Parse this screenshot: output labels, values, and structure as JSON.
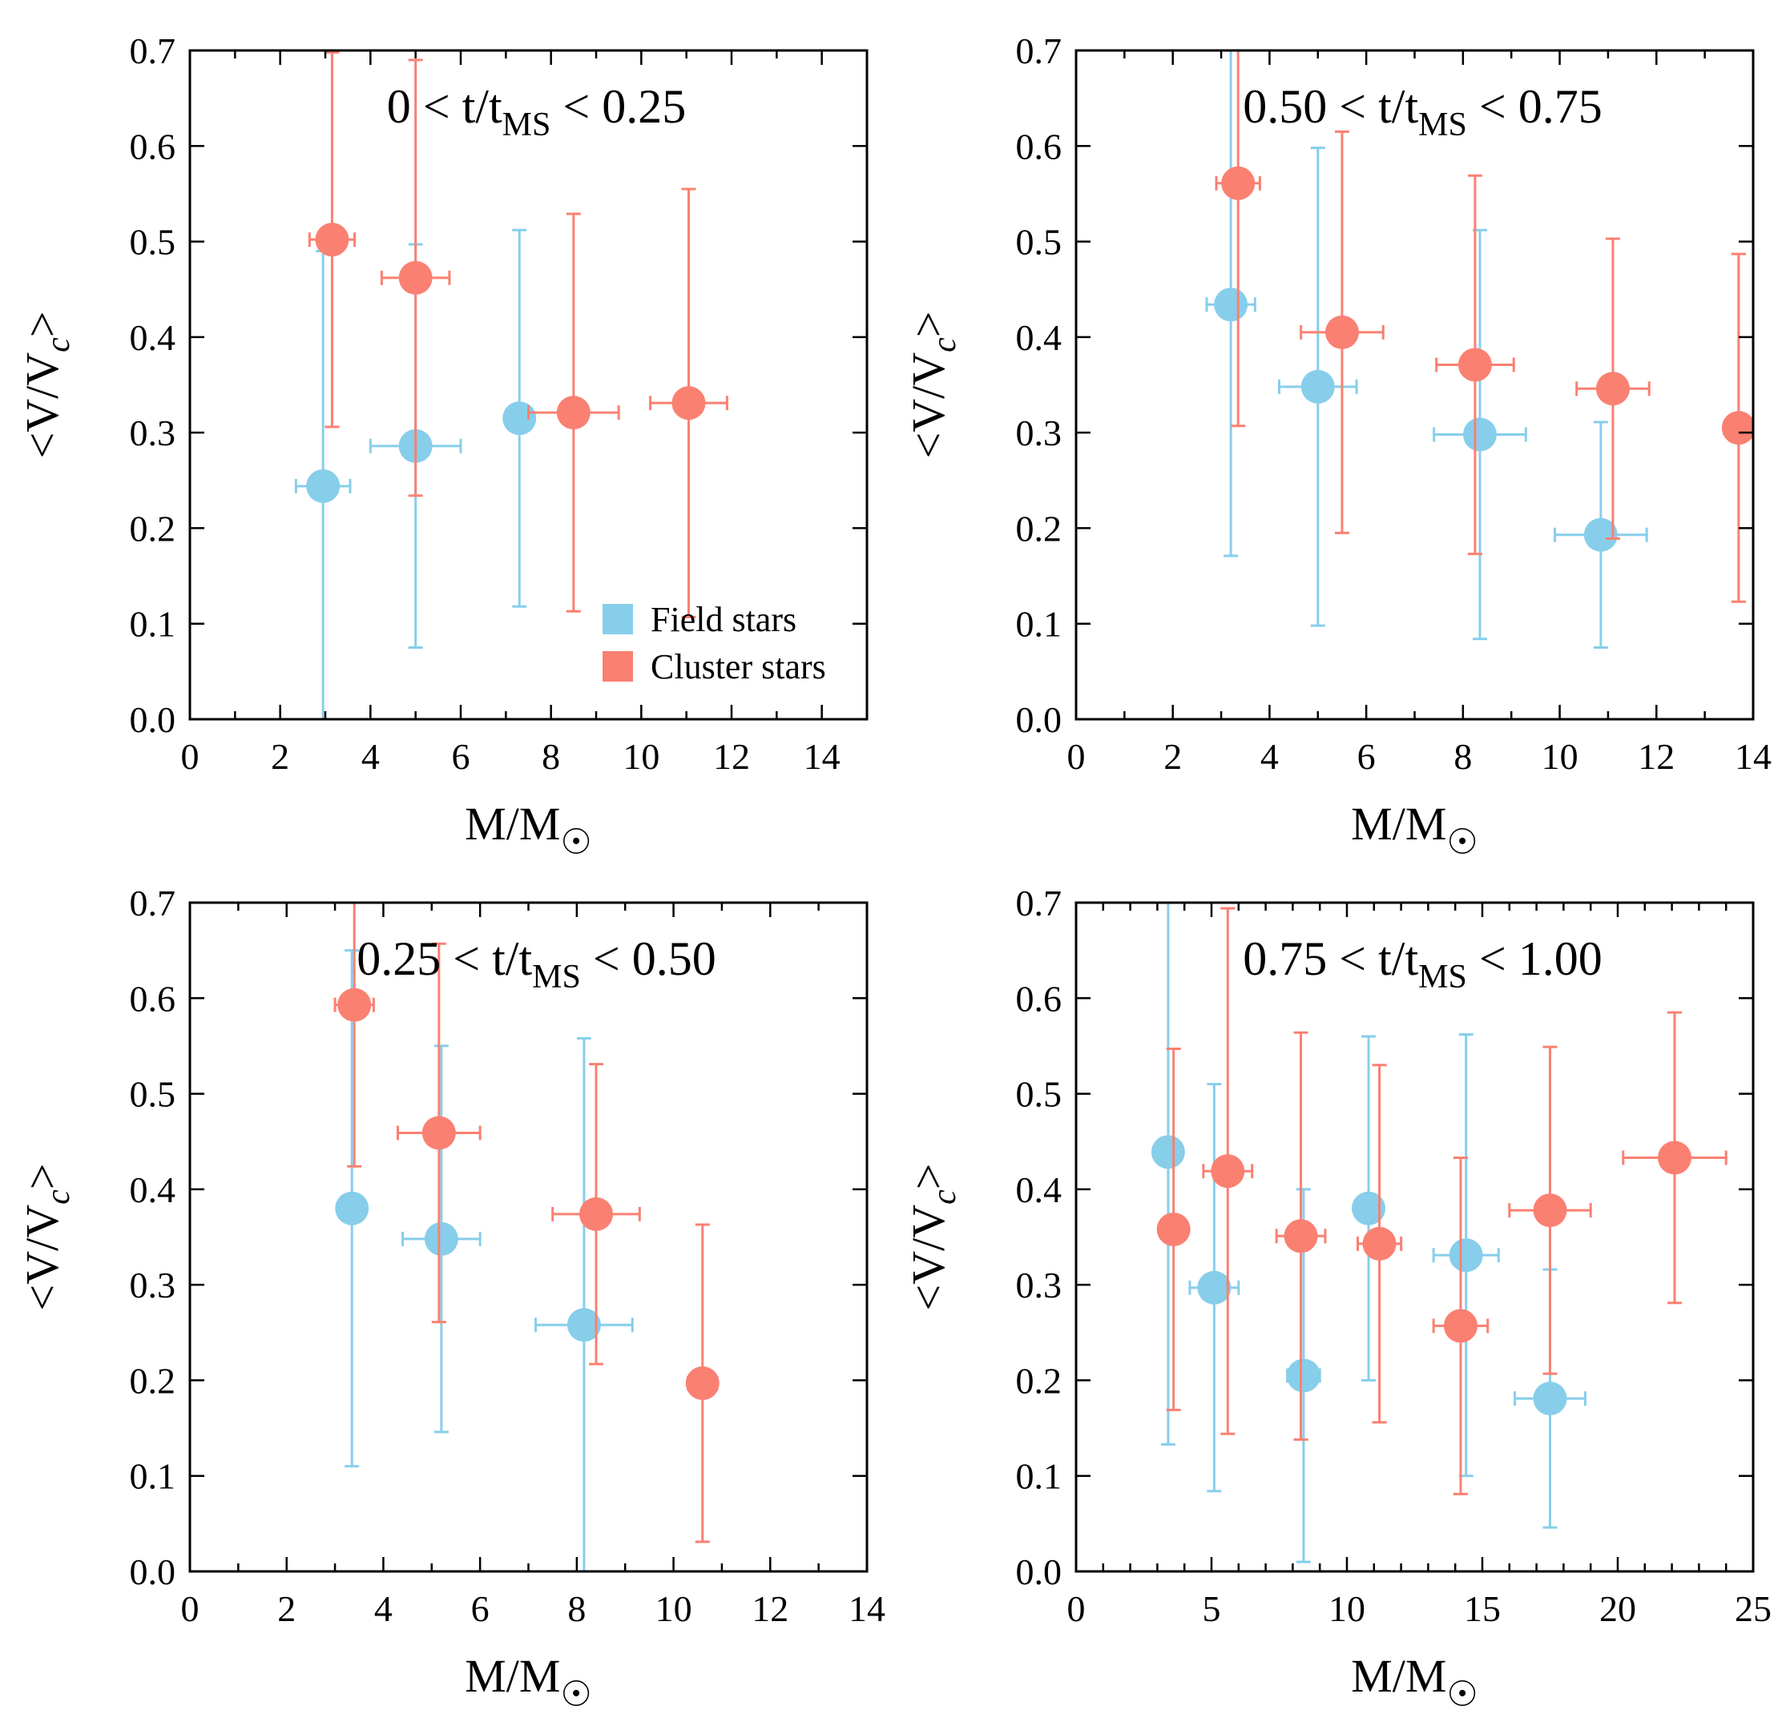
{
  "colors": {
    "field": "#87CEEB",
    "cluster": "#FA8072",
    "axis": "#000000"
  },
  "legend": {
    "field_label": "Field stars",
    "cluster_label": "Cluster stars"
  },
  "chart_data": [
    {
      "type": "scatter",
      "title": "0 < t/t_MS < 0.25",
      "title_parts": {
        "pre": "0 < t/t",
        "sub": "MS",
        "post": " < 0.25"
      },
      "xlabel": "M/M☉",
      "xlabel_parts": {
        "main": "M/M",
        "sub": "☉"
      },
      "ylabel": "<V/Vc>",
      "ylabel_parts": {
        "pre": "<V/V",
        "sub": "c",
        "post": ">"
      },
      "xlim": [
        0,
        15
      ],
      "ylim": [
        0.0,
        0.7
      ],
      "xticks": [
        0,
        2,
        4,
        6,
        8,
        10,
        12,
        14
      ],
      "xtick_labels": [
        "0",
        "2",
        "4",
        "6",
        "8",
        "10",
        "12",
        "14"
      ],
      "xminor": 1,
      "yticks": [
        0.0,
        0.1,
        0.2,
        0.3,
        0.4,
        0.5,
        0.6,
        0.7
      ],
      "ytick_labels": [
        "0.0",
        "0.1",
        "0.2",
        "0.3",
        "0.4",
        "0.5",
        "0.6",
        "0.7"
      ],
      "legend_shown": true,
      "series": [
        {
          "name": "Field stars",
          "points": [
            {
              "x": 2.95,
              "y": 0.244,
              "xerr": [
                0.6,
                0.6
              ],
              "yerr": [
                0.244,
                0.246
              ]
            },
            {
              "x": 5.0,
              "y": 0.286,
              "xerr": [
                1.0,
                1.0
              ],
              "yerr": [
                0.211,
                0.211
              ]
            },
            {
              "x": 7.3,
              "y": 0.315,
              "xerr": [
                0.0,
                0.0
              ],
              "yerr": [
                0.197,
                0.197
              ]
            }
          ]
        },
        {
          "name": "Cluster stars",
          "points": [
            {
              "x": 3.15,
              "y": 0.502,
              "xerr": [
                0.5,
                0.5
              ],
              "yerr": [
                0.196,
                0.196
              ]
            },
            {
              "x": 5.0,
              "y": 0.462,
              "xerr": [
                0.75,
                0.75
              ],
              "yerr": [
                0.228,
                0.228
              ]
            },
            {
              "x": 8.5,
              "y": 0.321,
              "xerr": [
                1.0,
                1.0
              ],
              "yerr": [
                0.208,
                0.208
              ]
            },
            {
              "x": 11.05,
              "y": 0.331,
              "xerr": [
                0.85,
                0.85
              ],
              "yerr": [
                0.224,
                0.224
              ]
            }
          ]
        }
      ]
    },
    {
      "type": "scatter",
      "title": "0.50 < t/t_MS < 0.75",
      "title_parts": {
        "pre": "0.50 < t/t",
        "sub": "MS",
        "post": " < 0.75"
      },
      "xlabel": "M/M☉",
      "xlabel_parts": {
        "main": "M/M",
        "sub": "☉"
      },
      "ylabel": "<V/Vc>",
      "ylabel_parts": {
        "pre": "<V/V",
        "sub": "c",
        "post": ">"
      },
      "xlim": [
        0,
        14
      ],
      "ylim": [
        0.0,
        0.7
      ],
      "xticks": [
        0,
        2,
        4,
        6,
        8,
        10,
        12,
        14
      ],
      "xtick_labels": [
        "0",
        "2",
        "4",
        "6",
        "8",
        "10",
        "12",
        "14"
      ],
      "xminor": 1,
      "yticks": [
        0.0,
        0.1,
        0.2,
        0.3,
        0.4,
        0.5,
        0.6,
        0.7
      ],
      "ytick_labels": [
        "0.0",
        "0.1",
        "0.2",
        "0.3",
        "0.4",
        "0.5",
        "0.6",
        "0.7"
      ],
      "legend_shown": false,
      "series": [
        {
          "name": "Field stars",
          "points": [
            {
              "x": 3.2,
              "y": 0.434,
              "xerr": [
                0.5,
                0.5
              ],
              "yerr": [
                0.263,
                0.266
              ]
            },
            {
              "x": 5.0,
              "y": 0.348,
              "xerr": [
                0.8,
                0.8
              ],
              "yerr": [
                0.25,
                0.25
              ]
            },
            {
              "x": 8.35,
              "y": 0.298,
              "xerr": [
                0.95,
                0.95
              ],
              "yerr": [
                0.214,
                0.214
              ]
            },
            {
              "x": 10.85,
              "y": 0.193,
              "xerr": [
                0.95,
                0.95
              ],
              "yerr": [
                0.118,
                0.118
              ]
            }
          ]
        },
        {
          "name": "Cluster stars",
          "points": [
            {
              "x": 3.35,
              "y": 0.561,
              "xerr": [
                0.45,
                0.45
              ],
              "yerr": [
                0.254,
                0.254
              ]
            },
            {
              "x": 5.5,
              "y": 0.405,
              "xerr": [
                0.85,
                0.85
              ],
              "yerr": [
                0.21,
                0.21
              ]
            },
            {
              "x": 8.25,
              "y": 0.371,
              "xerr": [
                0.8,
                0.8
              ],
              "yerr": [
                0.198,
                0.198
              ]
            },
            {
              "x": 11.1,
              "y": 0.346,
              "xerr": [
                0.75,
                0.75
              ],
              "yerr": [
                0.157,
                0.157
              ]
            },
            {
              "x": 13.7,
              "y": 0.305,
              "xerr": [
                0.3,
                0.3
              ],
              "yerr": [
                0.182,
                0.182
              ]
            }
          ]
        }
      ]
    },
    {
      "type": "scatter",
      "title": "0.25 < t/t_MS < 0.50",
      "title_parts": {
        "pre": "0.25 < t/t",
        "sub": "MS",
        "post": " < 0.50"
      },
      "xlabel": "M/M☉",
      "xlabel_parts": {
        "main": "M/M",
        "sub": "☉"
      },
      "ylabel": "<V/Vc>",
      "ylabel_parts": {
        "pre": "<V/V",
        "sub": "c",
        "post": ">"
      },
      "xlim": [
        0,
        14
      ],
      "ylim": [
        0.0,
        0.7
      ],
      "xticks": [
        0,
        2,
        4,
        6,
        8,
        10,
        12,
        14
      ],
      "xtick_labels": [
        "0",
        "2",
        "4",
        "6",
        "8",
        "10",
        "12",
        "14"
      ],
      "xminor": 1,
      "yticks": [
        0.0,
        0.1,
        0.2,
        0.3,
        0.4,
        0.5,
        0.6,
        0.7
      ],
      "ytick_labels": [
        "0.0",
        "0.1",
        "0.2",
        "0.3",
        "0.4",
        "0.5",
        "0.6",
        "0.7"
      ],
      "legend_shown": false,
      "series": [
        {
          "name": "Field stars",
          "points": [
            {
              "x": 3.35,
              "y": 0.38,
              "xerr": [
                0.25,
                0.25
              ],
              "yerr": [
                0.27,
                0.27
              ]
            },
            {
              "x": 5.2,
              "y": 0.348,
              "xerr": [
                0.8,
                0.8
              ],
              "yerr": [
                0.202,
                0.202
              ]
            },
            {
              "x": 8.15,
              "y": 0.258,
              "xerr": [
                1.0,
                1.0
              ],
              "yerr": [
                0.258,
                0.3
              ]
            }
          ]
        },
        {
          "name": "Cluster stars",
          "points": [
            {
              "x": 3.4,
              "y": 0.593,
              "xerr": [
                0.4,
                0.4
              ],
              "yerr": [
                0.169,
                0.169
              ]
            },
            {
              "x": 5.15,
              "y": 0.459,
              "xerr": [
                0.85,
                0.85
              ],
              "yerr": [
                0.198,
                0.198
              ]
            },
            {
              "x": 8.4,
              "y": 0.374,
              "xerr": [
                0.9,
                0.9
              ],
              "yerr": [
                0.157,
                0.157
              ]
            },
            {
              "x": 10.6,
              "y": 0.197,
              "xerr": [
                0.3,
                0.3
              ],
              "yerr": [
                0.166,
                0.166
              ]
            }
          ]
        }
      ]
    },
    {
      "type": "scatter",
      "title": "0.75 < t/t_MS < 1.00",
      "title_parts": {
        "pre": "0.75 < t/t",
        "sub": "MS",
        "post": " < 1.00"
      },
      "xlabel": "M/M☉",
      "xlabel_parts": {
        "main": "M/M",
        "sub": "☉"
      },
      "ylabel": "<V/Vc>",
      "ylabel_parts": {
        "pre": "<V/V",
        "sub": "c",
        "post": ">"
      },
      "xlim": [
        0,
        25
      ],
      "ylim": [
        0.0,
        0.7
      ],
      "xticks": [
        0,
        5,
        10,
        15,
        20,
        25
      ],
      "xtick_labels": [
        "0",
        "5",
        "10",
        "15",
        "20",
        "25"
      ],
      "xminor": 1,
      "yticks": [
        0.0,
        0.1,
        0.2,
        0.3,
        0.4,
        0.5,
        0.6,
        0.7
      ],
      "ytick_labels": [
        "0.0",
        "0.1",
        "0.2",
        "0.3",
        "0.4",
        "0.5",
        "0.6",
        "0.7"
      ],
      "legend_shown": false,
      "series": [
        {
          "name": "Field stars",
          "points": [
            {
              "x": 3.4,
              "y": 0.439,
              "xerr": [
                0.0,
                0.0
              ],
              "yerr": [
                0.306,
                0.306
              ]
            },
            {
              "x": 5.1,
              "y": 0.297,
              "xerr": [
                0.9,
                0.9
              ],
              "yerr": [
                0.213,
                0.213
              ]
            },
            {
              "x": 8.4,
              "y": 0.205,
              "xerr": [
                0.6,
                0.6
              ],
              "yerr": [
                0.195,
                0.195
              ]
            },
            {
              "x": 10.8,
              "y": 0.38,
              "xerr": [
                0.5,
                0.5
              ],
              "yerr": [
                0.18,
                0.18
              ]
            },
            {
              "x": 14.4,
              "y": 0.331,
              "xerr": [
                1.2,
                1.2
              ],
              "yerr": [
                0.231,
                0.231
              ]
            },
            {
              "x": 17.5,
              "y": 0.181,
              "xerr": [
                1.3,
                1.3
              ],
              "yerr": [
                0.135,
                0.135
              ]
            }
          ]
        },
        {
          "name": "Cluster stars",
          "points": [
            {
              "x": 3.6,
              "y": 0.358,
              "xerr": [
                0.0,
                0.0
              ],
              "yerr": [
                0.189,
                0.189
              ]
            },
            {
              "x": 5.6,
              "y": 0.419,
              "xerr": [
                0.9,
                0.9
              ],
              "yerr": [
                0.275,
                0.275
              ]
            },
            {
              "x": 8.3,
              "y": 0.351,
              "xerr": [
                0.9,
                0.9
              ],
              "yerr": [
                0.213,
                0.213
              ]
            },
            {
              "x": 11.2,
              "y": 0.343,
              "xerr": [
                0.8,
                0.8
              ],
              "yerr": [
                0.187,
                0.187
              ]
            },
            {
              "x": 14.2,
              "y": 0.257,
              "xerr": [
                1.0,
                1.0
              ],
              "yerr": [
                0.176,
                0.176
              ]
            },
            {
              "x": 17.5,
              "y": 0.378,
              "xerr": [
                1.5,
                1.5
              ],
              "yerr": [
                0.171,
                0.171
              ]
            },
            {
              "x": 22.1,
              "y": 0.433,
              "xerr": [
                1.9,
                1.9
              ],
              "yerr": [
                0.152,
                0.152
              ]
            }
          ]
        }
      ]
    }
  ]
}
